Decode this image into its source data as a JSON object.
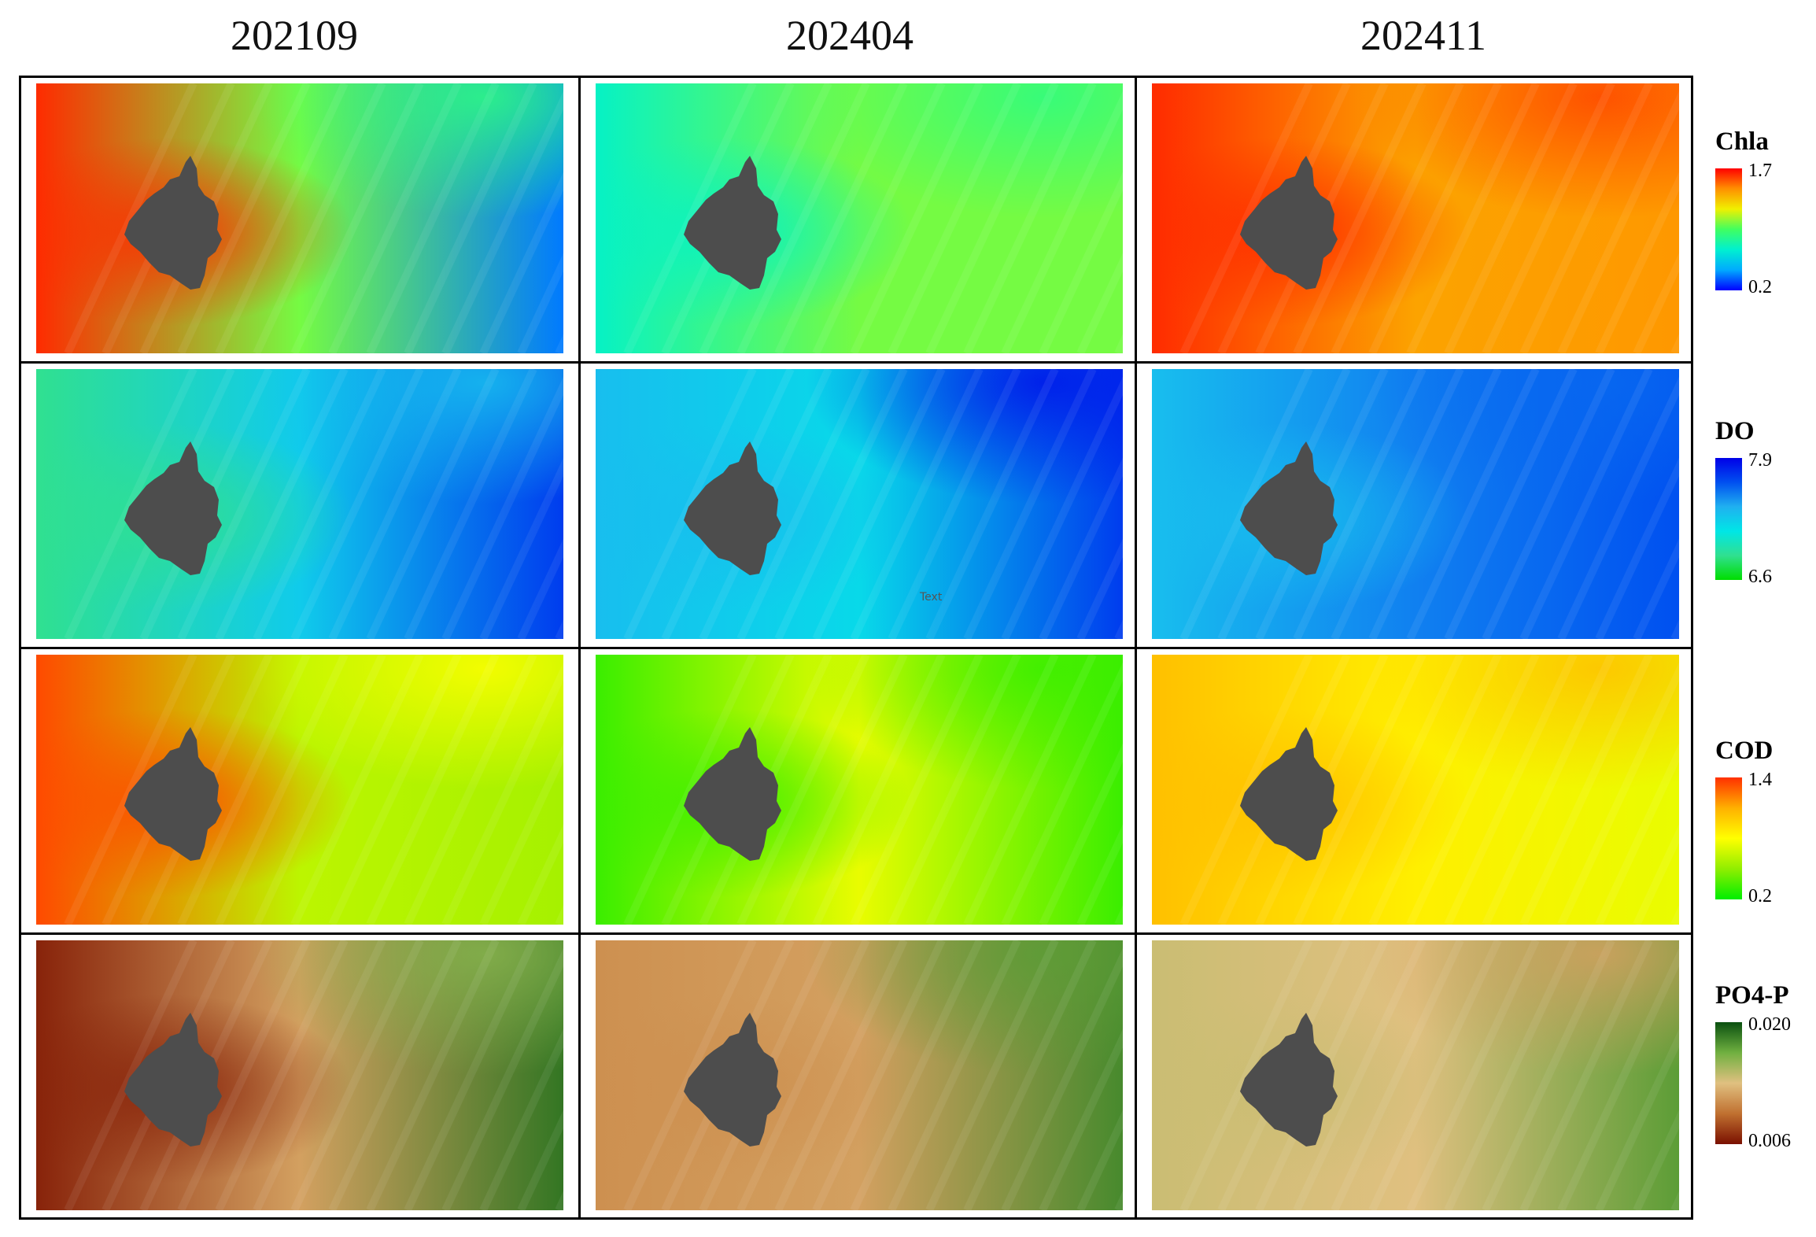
{
  "columns": [
    "202109",
    "202404",
    "202411"
  ],
  "rows": [
    {
      "variable": "Chla",
      "legend_max": "1.7",
      "legend_min": "0.2",
      "ramp": [
        "#0000ff",
        "#00aaff",
        "#00f0d0",
        "#40ff60",
        "#f0f000",
        "#ff9000",
        "#ff0000"
      ]
    },
    {
      "variable": "DO",
      "legend_max": "7.9",
      "legend_min": "6.6",
      "ramp": [
        "#00dd00",
        "#30e090",
        "#00e6e6",
        "#20b0f0",
        "#0050f0",
        "#0000e8"
      ]
    },
    {
      "variable": "COD",
      "legend_max": "1.4",
      "legend_min": "0.2",
      "ramp": [
        "#00ee00",
        "#90ee00",
        "#ffff00",
        "#ffb000",
        "#ff3000"
      ]
    },
    {
      "variable": "PO4-P",
      "legend_max": "0.020",
      "legend_min": "0.006",
      "ramp": [
        "#7a1000",
        "#c07030",
        "#e0c080",
        "#70b040",
        "#0a5010"
      ]
    }
  ],
  "panel_levels": [
    [
      {
        "west": 0.95,
        "center": 0.55,
        "east": 0.12,
        "north_east": 0.45
      },
      {
        "west": 0.35,
        "center": 0.55,
        "east": 0.55,
        "north_east": 0.45
      },
      {
        "west": 0.95,
        "center": 0.8,
        "east": 0.82,
        "north_east": 0.92
      }
    ],
    [
      {
        "west": 0.2,
        "center": 0.5,
        "east": 0.85,
        "north_east": 0.55
      },
      {
        "west": 0.55,
        "center": 0.45,
        "east": 0.85,
        "north_east": 0.95
      },
      {
        "west": 0.55,
        "center": 0.7,
        "east": 0.8,
        "north_east": 0.75
      }
    ],
    [
      {
        "west": 0.95,
        "center": 0.35,
        "east": 0.3,
        "north_east": 0.5
      },
      {
        "west": 0.1,
        "center": 0.45,
        "east": 0.1,
        "north_east": 0.1
      },
      {
        "west": 0.7,
        "center": 0.55,
        "east": 0.45,
        "north_east": 0.7
      }
    ],
    [
      {
        "west": 0.05,
        "center": 0.4,
        "east": 0.9,
        "north_east": 0.7
      },
      {
        "west": 0.35,
        "center": 0.4,
        "east": 0.85,
        "north_east": 0.8
      },
      {
        "west": 0.55,
        "center": 0.5,
        "east": 0.8,
        "north_east": 0.4
      }
    ]
  ],
  "annotations": {
    "stray_text": "Text"
  },
  "colors": {
    "landmass": "#4d4d4d",
    "frame": "#000000"
  }
}
